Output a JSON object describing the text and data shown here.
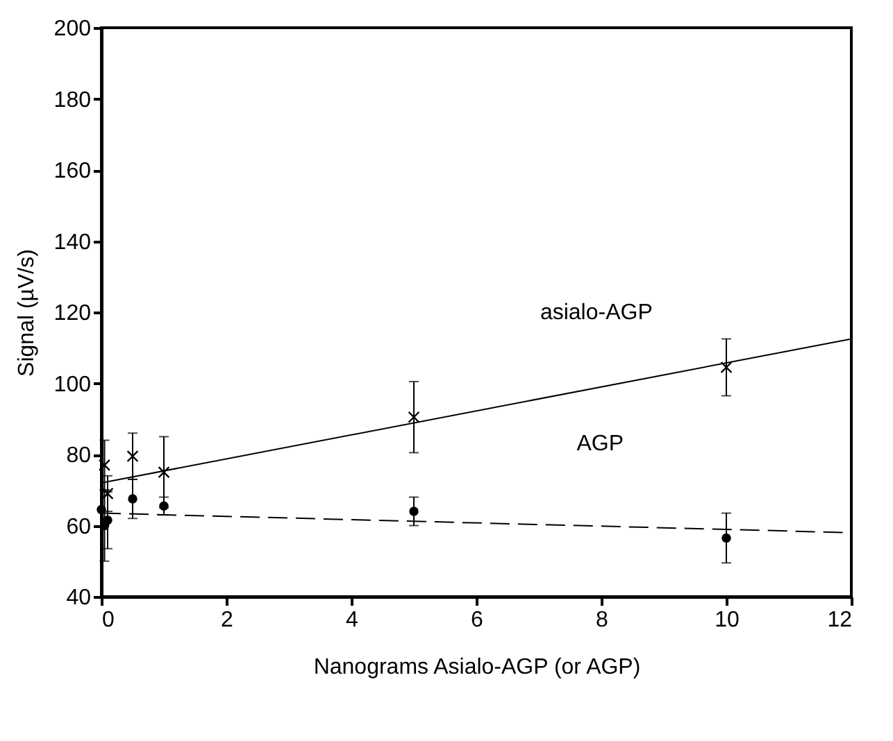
{
  "chart_data": {
    "type": "scatter",
    "xlabel": "Nanograms Asialo-AGP (or AGP)",
    "ylabel": "Signal (µV/s)",
    "xlim": [
      0,
      12
    ],
    "xticks": [
      0,
      2,
      4,
      6,
      8,
      10,
      12
    ],
    "ylim": [
      40,
      200
    ],
    "yticks": [
      40,
      60,
      80,
      100,
      120,
      140,
      160,
      180,
      200
    ],
    "grid": false,
    "series": [
      {
        "marker": "cross",
        "color": "#000000",
        "x": [
          0.05,
          0.1,
          0.5,
          1,
          5,
          10
        ],
        "values": [
          77,
          69,
          79.5,
          75,
          90.5,
          104.5
        ],
        "errors": [
          7,
          5,
          6.5,
          10,
          10,
          8
        ]
      },
      {
        "marker": "circle",
        "color": "#000000",
        "x": [
          0,
          0.05,
          0.1,
          0.5,
          1,
          5,
          10
        ],
        "values": [
          64.5,
          60,
          61.5,
          67.5,
          65.5,
          64,
          56.5
        ],
        "errors": [
          null,
          10,
          8,
          5.5,
          2.5,
          4,
          7
        ]
      },
      {
        "type": "line",
        "line_style": "solid",
        "color": "#000000",
        "x": [
          0,
          12
        ],
        "values": [
          72,
          112.5
        ]
      },
      {
        "type": "line",
        "line_style": "dashed",
        "color": "#000000",
        "x": [
          0,
          12
        ],
        "values": [
          63.5,
          58
        ]
      }
    ],
    "annotations": [
      "asialo-AGP",
      "AGP"
    ]
  }
}
